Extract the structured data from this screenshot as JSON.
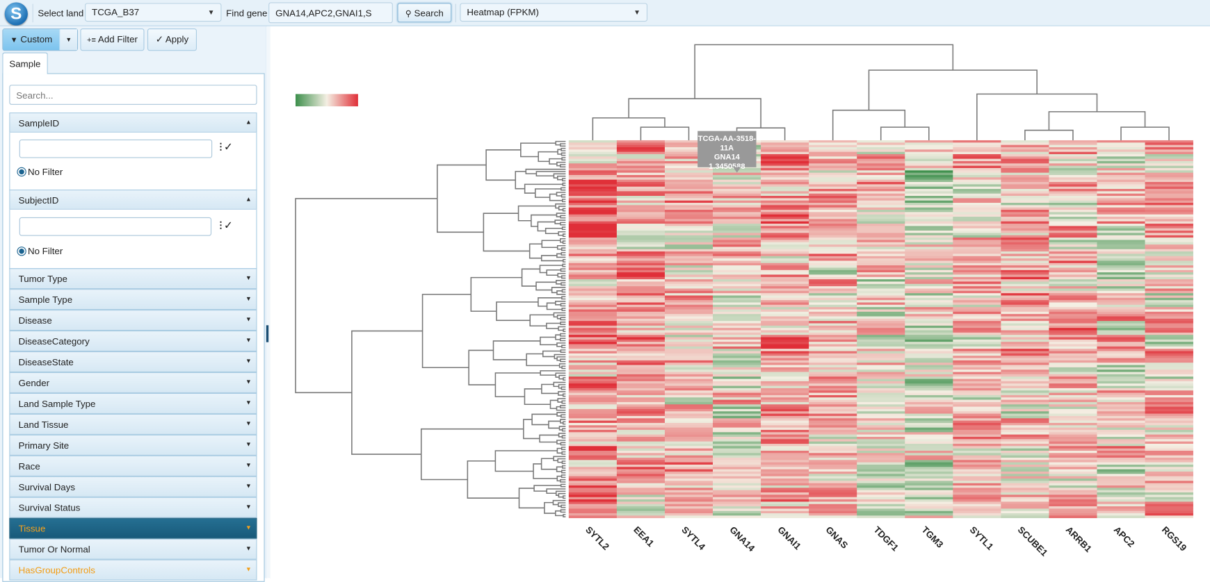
{
  "topbar": {
    "logo_letter": "S",
    "select_land_label": "Select land",
    "land_value": "TCGA_B37",
    "find_gene_label": "Find gene",
    "gene_input_value": "GNA14,APC2,GNAI1,S",
    "search_label": "Search",
    "view_value": "Heatmap (FPKM)"
  },
  "toolbar": {
    "custom_label": "Custom",
    "add_filter_label": "Add Filter",
    "apply_label": "Apply"
  },
  "tabs": [
    {
      "label": "Sample"
    }
  ],
  "sidebar": {
    "search_placeholder": "Search...",
    "sampleid": {
      "label": "SampleID",
      "value": "",
      "radio_label": "No Filter"
    },
    "subjectid": {
      "label": "SubjectID",
      "value": "",
      "radio_label": "No Filter"
    },
    "filters": [
      {
        "label": "Tumor Type"
      },
      {
        "label": "Sample Type"
      },
      {
        "label": "Disease"
      },
      {
        "label": "DiseaseCategory"
      },
      {
        "label": "DiseaseState"
      },
      {
        "label": "Gender"
      },
      {
        "label": "Land Sample Type"
      },
      {
        "label": "Land Tissue"
      },
      {
        "label": "Primary Site"
      },
      {
        "label": "Race"
      },
      {
        "label": "Survival Days"
      },
      {
        "label": "Survival Status"
      },
      {
        "label": "Tissue",
        "state": "selected"
      },
      {
        "label": "Tumor Or Normal"
      },
      {
        "label": "HasGroupControls",
        "state": "highlighted"
      }
    ]
  },
  "heatmap": {
    "genes": [
      "SYTL2",
      "EEA1",
      "SYTL4",
      "GNA14",
      "GNAI1",
      "GNAS",
      "TDGF1",
      "TGM3",
      "SYTL1",
      "SCUBE1",
      "ARRB1",
      "APC2",
      "RGS19"
    ],
    "colors": {
      "low": "#3d8f4c",
      "mid": "#f4efe3",
      "high": "#e02f38"
    },
    "tooltip": {
      "sample": "TCGA-AA-3518-11A",
      "gene": "GNA14",
      "value": "1.3450588"
    }
  }
}
